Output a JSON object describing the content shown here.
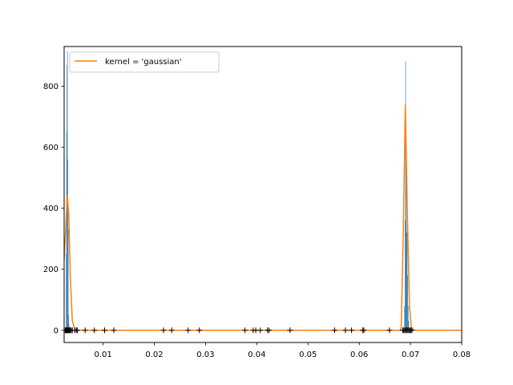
{
  "chart_data": {
    "type": "histogram+kde",
    "title": "",
    "xlabel": "",
    "ylabel": "",
    "xlim": [
      0.0024,
      0.08
    ],
    "ylim": [
      -40,
      930
    ],
    "x_ticks": [
      0.01,
      0.02,
      0.03,
      0.04,
      0.05,
      0.06,
      0.07,
      0.08
    ],
    "x_tick_labels": [
      "0.01",
      "0.02",
      "0.03",
      "0.04",
      "0.05",
      "0.06",
      "0.07",
      "0.08"
    ],
    "y_ticks": [
      0,
      200,
      400,
      600,
      800
    ],
    "y_tick_labels": [
      "0",
      "200",
      "400",
      "600",
      "800"
    ],
    "legend": {
      "position": "top-left",
      "entries": [
        {
          "label": "kernel = 'gaussian'",
          "color": "#ff7f0e"
        }
      ]
    },
    "histogram": {
      "color": "#1f77b4",
      "bins": [
        {
          "x0": 0.00275,
          "x1": 0.00283,
          "count": 250
        },
        {
          "x0": 0.00283,
          "x1": 0.00291,
          "count": 650
        },
        {
          "x0": 0.00291,
          "x1": 0.00299,
          "count": 870
        },
        {
          "x0": 0.00299,
          "x1": 0.00307,
          "count": 915
        },
        {
          "x0": 0.00307,
          "x1": 0.00315,
          "count": 560
        },
        {
          "x0": 0.00315,
          "x1": 0.00323,
          "count": 330
        },
        {
          "x0": 0.00323,
          "x1": 0.00331,
          "count": 50
        },
        {
          "x0": 0.00331,
          "x1": 0.00339,
          "count": 20
        },
        {
          "x0": 0.0688,
          "x1": 0.0689,
          "count": 80
        },
        {
          "x0": 0.0689,
          "x1": 0.069,
          "count": 360
        },
        {
          "x0": 0.069,
          "x1": 0.0691,
          "count": 880
        },
        {
          "x0": 0.0691,
          "x1": 0.0692,
          "count": 600
        },
        {
          "x0": 0.0692,
          "x1": 0.0693,
          "count": 320
        },
        {
          "x0": 0.0693,
          "x1": 0.0694,
          "count": 450
        },
        {
          "x0": 0.0694,
          "x1": 0.0695,
          "count": 180
        },
        {
          "x0": 0.0695,
          "x1": 0.0696,
          "count": 80
        },
        {
          "x0": 0.0696,
          "x1": 0.0697,
          "count": 30
        }
      ]
    },
    "kde": {
      "name": "kernel = 'gaussian'",
      "color": "#ff7f0e",
      "x": [
        0.0024,
        0.0027,
        0.003,
        0.0033,
        0.0036,
        0.004,
        0.0045,
        0.005,
        0.006,
        0.01,
        0.03,
        0.06,
        0.067,
        0.068,
        0.0682,
        0.0686,
        0.069,
        0.0694,
        0.0698,
        0.0702,
        0.071,
        0.08
      ],
      "y": [
        230,
        330,
        445,
        380,
        180,
        30,
        3,
        0,
        0,
        0,
        0,
        0,
        0,
        0,
        10,
        320,
        740,
        380,
        80,
        5,
        0,
        0
      ]
    },
    "rug_points": [
      0.0026,
      0.0027,
      0.0028,
      0.0029,
      0.003,
      0.0031,
      0.0032,
      0.0033,
      0.0034,
      0.0035,
      0.0036,
      0.0038,
      0.004,
      0.0045,
      0.0048,
      0.005,
      0.0065,
      0.0083,
      0.0103,
      0.0121,
      0.0218,
      0.0234,
      0.0266,
      0.0288,
      0.0377,
      0.0393,
      0.0398,
      0.0407,
      0.0421,
      0.0424,
      0.0465,
      0.0552,
      0.0573,
      0.0585,
      0.0607,
      0.0609,
      0.0659,
      0.0685,
      0.0687,
      0.0689,
      0.0691,
      0.0693,
      0.0695,
      0.0697,
      0.0699,
      0.0701,
      0.0703
    ]
  }
}
